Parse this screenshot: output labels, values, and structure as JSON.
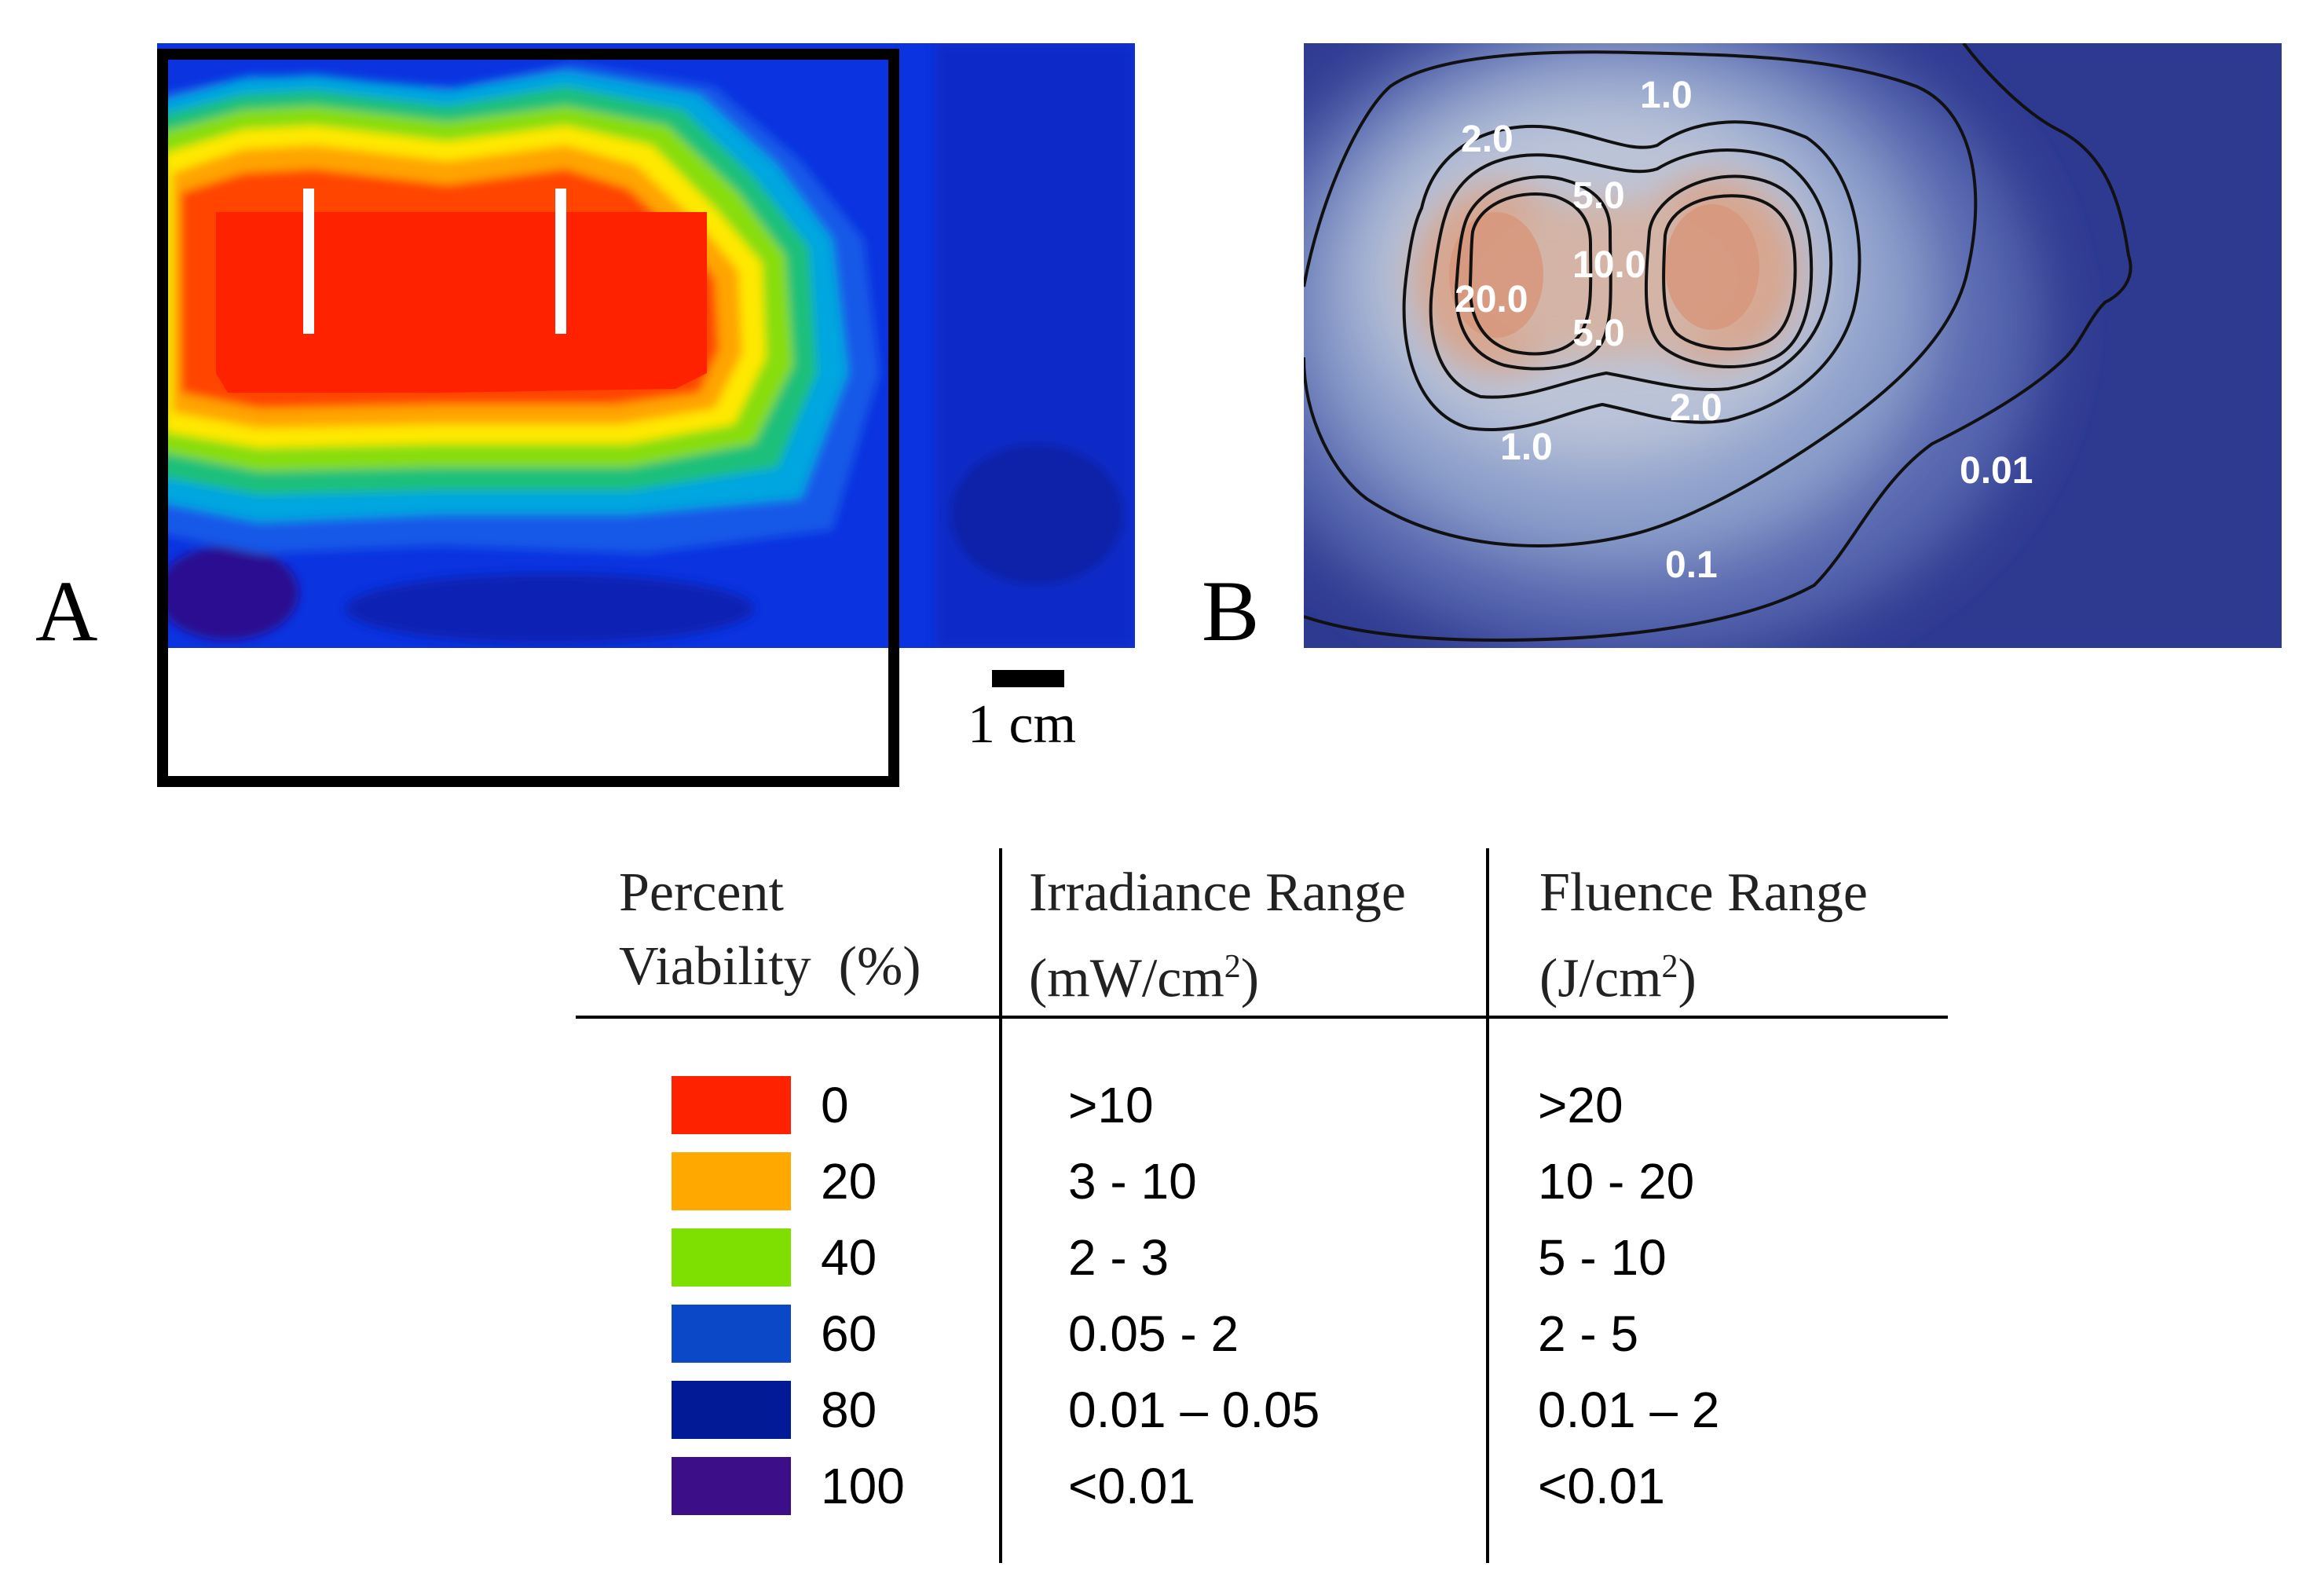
{
  "panel_a": {
    "label": "A",
    "scale_bar_label": "1 cm"
  },
  "panel_b": {
    "label": "B",
    "contours": [
      {
        "value": "1.0"
      },
      {
        "value": "2.0"
      },
      {
        "value": "5.0"
      },
      {
        "value": "10.0"
      },
      {
        "value": "20.0"
      },
      {
        "value": "5.0"
      },
      {
        "value": "2.0"
      },
      {
        "value": "1.0"
      },
      {
        "value": "0.01"
      },
      {
        "value": "0.1"
      }
    ]
  },
  "legend_table": {
    "headers": {
      "viability_line1": "Percent",
      "viability_line2": "Viability  (%)",
      "irradiance_line1": "Irradiance Range",
      "irradiance_line2": "(mW/cm",
      "irradiance_sup": "2",
      "irradiance_close": ")",
      "fluence_line1": "Fluence Range",
      "fluence_line2": "(J/cm",
      "fluence_sup": "2",
      "fluence_close": ")"
    },
    "rows": [
      {
        "color": "#ff2200",
        "viability": "0",
        "irradiance": ">10",
        "fluence": ">20"
      },
      {
        "color": "#ffa800",
        "viability": "20",
        "irradiance": "3 - 10",
        "fluence": "10 - 20"
      },
      {
        "color": "#7ee000",
        "viability": "40",
        "irradiance": "2 - 3",
        "fluence": "5 - 10"
      },
      {
        "color": "#0a48c8",
        "viability": "60",
        "irradiance": "0.05 - 2",
        "fluence": "2 - 5"
      },
      {
        "color": "#031a96",
        "viability": "80",
        "irradiance": "0.01 – 0.05",
        "fluence": "0.01 – 2"
      },
      {
        "color": "#3c0f88",
        "viability": "100",
        "irradiance": "<0.01",
        "fluence": "<0.01"
      }
    ]
  }
}
